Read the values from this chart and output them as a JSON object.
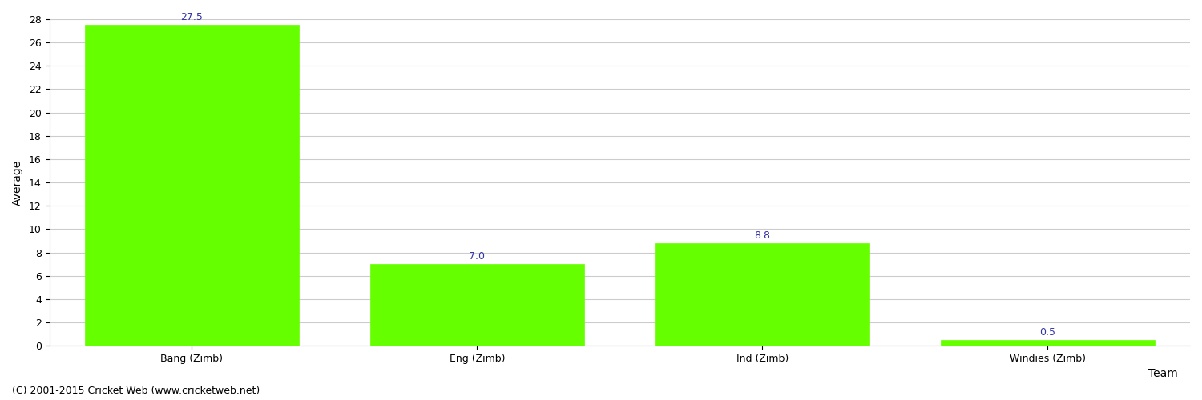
{
  "categories": [
    "Bang (Zimb)",
    "Eng (Zimb)",
    "Ind (Zimb)",
    "Windies (Zimb)"
  ],
  "values": [
    27.5,
    7.0,
    8.8,
    0.5
  ],
  "bar_color": "#66ff00",
  "bar_edge_color": "#66ff00",
  "label_color": "#3333aa",
  "xlabel": "Team",
  "ylabel": "Average",
  "ylim": [
    0,
    28
  ],
  "yticks": [
    0,
    2,
    4,
    6,
    8,
    10,
    12,
    14,
    16,
    18,
    20,
    22,
    24,
    26,
    28
  ],
  "background_color": "#ffffff",
  "grid_color": "#cccccc",
  "footer": "(C) 2001-2015 Cricket Web (www.cricketweb.net)",
  "bar_width": 0.75,
  "label_fontsize": 9,
  "axis_label_fontsize": 10,
  "tick_fontsize": 9,
  "footer_fontsize": 9
}
